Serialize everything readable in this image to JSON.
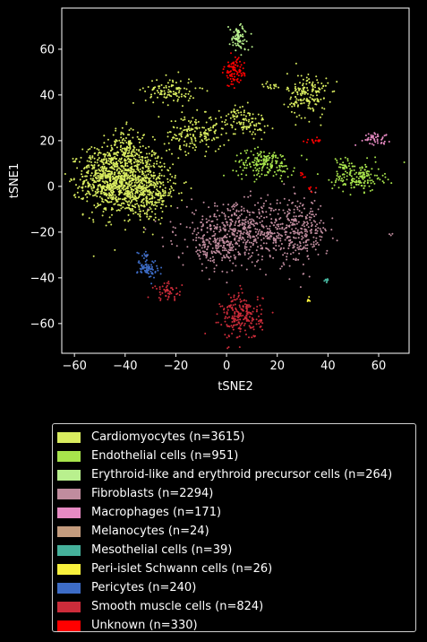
{
  "chart_data": {
    "type": "scatter",
    "xlabel": "tSNE2",
    "ylabel": "tSNE1",
    "xlim": [
      -65,
      72
    ],
    "ylim": [
      -73,
      78
    ],
    "xticks": [
      -60,
      -40,
      -20,
      0,
      20,
      40,
      60
    ],
    "yticks": [
      -60,
      -40,
      -20,
      0,
      20,
      40,
      60
    ],
    "grid": false,
    "legend_position": "below plot",
    "series": [
      {
        "name": "Cardiomyocytes (n=3615)",
        "color": "#d9ec5f",
        "clusters": [
          {
            "x": -40,
            "y": 3,
            "sx": 8,
            "sy": 8,
            "n": 900
          },
          {
            "x": -48,
            "y": 4,
            "sx": 5,
            "sy": 6,
            "n": 250
          },
          {
            "x": -30,
            "y": -3,
            "sx": 5,
            "sy": 5,
            "n": 200
          },
          {
            "x": -40,
            "y": 18,
            "sx": 3,
            "sy": 4,
            "n": 80
          },
          {
            "x": -22,
            "y": 42,
            "sx": 5,
            "sy": 3,
            "n": 110
          },
          {
            "x": -12,
            "y": 23,
            "sx": 6,
            "sy": 4,
            "n": 170
          },
          {
            "x": 8,
            "y": 28,
            "sx": 4,
            "sy": 3,
            "n": 90
          },
          {
            "x": 32,
            "y": 40,
            "sx": 4,
            "sy": 5,
            "n": 170
          },
          {
            "x": 17,
            "y": 44,
            "sx": 1.5,
            "sy": 1,
            "n": 15
          },
          {
            "x": 4,
            "y": 32,
            "sx": 1.5,
            "sy": 1.5,
            "n": 20
          }
        ]
      },
      {
        "name": "Endothelial cells (n=951)",
        "color": "#a8e44c",
        "clusters": [
          {
            "x": 15,
            "y": 10,
            "sx": 6,
            "sy": 3,
            "n": 180
          },
          {
            "x": 52,
            "y": 4,
            "sx": 5,
            "sy": 3,
            "n": 160
          },
          {
            "x": 46,
            "y": 9,
            "sx": 2,
            "sy": 2,
            "n": 25
          }
        ]
      },
      {
        "name": "Erythroid-like and erythroid precursor cells (n=264)",
        "color": "#b9f08e",
        "clusters": [
          {
            "x": 5,
            "y": 65,
            "sx": 2,
            "sy": 3,
            "n": 80
          }
        ]
      },
      {
        "name": "Fibroblasts (n=2294)",
        "color": "#c08c9e",
        "clusters": [
          {
            "x": 5,
            "y": -20,
            "sx": 12,
            "sy": 6,
            "n": 550
          },
          {
            "x": 28,
            "y": -20,
            "sx": 6,
            "sy": 7,
            "n": 280
          },
          {
            "x": -5,
            "y": -28,
            "sx": 5,
            "sy": 4,
            "n": 100
          },
          {
            "x": 65,
            "y": -21,
            "sx": 0.3,
            "sy": 0.3,
            "n": 3
          }
        ]
      },
      {
        "name": "Macrophages (n=171)",
        "color": "#e78ac3",
        "clusters": [
          {
            "x": 58,
            "y": 21,
            "sx": 3,
            "sy": 1.2,
            "n": 45
          }
        ]
      },
      {
        "name": "Melanocytes (n=24)",
        "color": "#c49c7e",
        "clusters": []
      },
      {
        "name": "Mesothelial cells (n=39)",
        "color": "#45b19b",
        "clusters": [
          {
            "x": 39.5,
            "y": -41,
            "sx": 0.5,
            "sy": 0.6,
            "n": 12
          }
        ]
      },
      {
        "name": "Peri-islet Schwann cells (n=26)",
        "color": "#f8f03c",
        "clusters": [
          {
            "x": 32,
            "y": -49.5,
            "sx": 0.5,
            "sy": 0.6,
            "n": 8
          }
        ]
      },
      {
        "name": "Pericytes (n=240)",
        "color": "#3d6cc6",
        "clusters": [
          {
            "x": -31,
            "y": -36,
            "sx": 2,
            "sy": 2,
            "n": 70
          },
          {
            "x": -32,
            "y": -30,
            "sx": 1.5,
            "sy": 1,
            "n": 12
          }
        ]
      },
      {
        "name": "Smooth muscle cells (n=824)",
        "color": "#cc2c3a",
        "clusters": [
          {
            "x": 6,
            "y": -57,
            "sx": 4,
            "sy": 5,
            "n": 220
          },
          {
            "x": -23,
            "y": -46,
            "sx": 3,
            "sy": 2,
            "n": 50
          }
        ]
      },
      {
        "name": "Unknown (n=330)",
        "color": "#ff0000",
        "clusters": [
          {
            "x": 3,
            "y": 50,
            "sx": 2,
            "sy": 3,
            "n": 90
          },
          {
            "x": 35,
            "y": 20,
            "sx": 2,
            "sy": 0.6,
            "n": 15
          },
          {
            "x": 30,
            "y": 5,
            "sx": 0.6,
            "sy": 0.6,
            "n": 6
          },
          {
            "x": 33,
            "y": -1,
            "sx": 0.8,
            "sy": 0.6,
            "n": 6
          }
        ]
      }
    ]
  }
}
